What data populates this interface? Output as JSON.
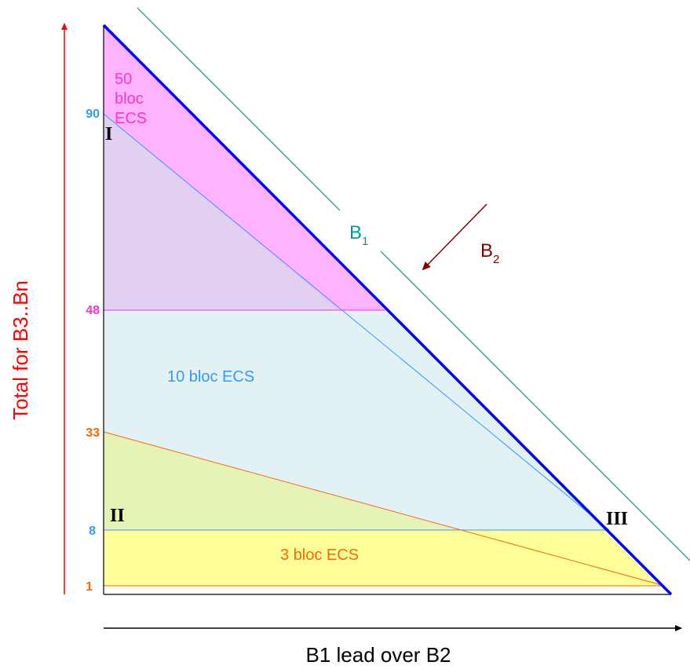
{
  "diagram": {
    "y_axis_label": "Total  for B3..Bn",
    "x_axis_label": "B1 lead over B2",
    "ticks": {
      "t90": "90",
      "t48": "48",
      "t33": "33",
      "t8": "8",
      "t1": "1"
    },
    "regions": {
      "ecs50": [
        "50",
        "bloc",
        "ECS"
      ],
      "ecs10": "10 bloc ECS",
      "ecs3": "3 bloc ECS"
    },
    "roman": {
      "one": "I",
      "two": "II",
      "three": "III"
    },
    "lines": {
      "b1": {
        "base": "B",
        "sub": "1"
      },
      "b2": {
        "base": "B",
        "sub": "2"
      }
    }
  },
  "colors": {
    "axis_label": "#ff0000",
    "main_diagonal": "#0000ff",
    "b1_line": "#009999",
    "b2_arrow": "#800000",
    "tick_90_8": "#3399ff",
    "tick_48": "#ff33cc",
    "tick_33_1": "#ff6600",
    "fill_magenta": "#ffb3ff",
    "fill_lavender": "#e1d0f0",
    "fill_lightblue": "#e2f1f4",
    "fill_green": "#e4f4b4",
    "fill_yellow": "#ffff99"
  }
}
